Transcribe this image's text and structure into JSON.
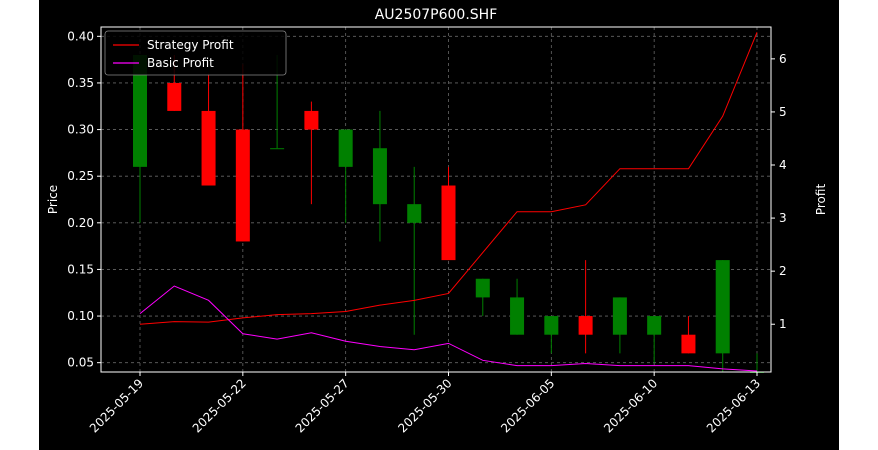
{
  "chart_data": {
    "type": "candlestick",
    "title": "AU2507P600.SHF",
    "ylabel": "Price",
    "ylabel_right": "Profit",
    "ylim": [
      0.04,
      0.41
    ],
    "ylim_right": [
      0.1,
      6.6
    ],
    "yticks": [
      "0.05",
      "0.10",
      "0.15",
      "0.20",
      "0.25",
      "0.30",
      "0.35",
      "0.40"
    ],
    "yticks_right": [
      "1",
      "2",
      "3",
      "4",
      "5",
      "6"
    ],
    "xticks": [
      {
        "label": "2025-05-19",
        "index": 0
      },
      {
        "label": "2025-05-22",
        "index": 3
      },
      {
        "label": "2025-05-27",
        "index": 6
      },
      {
        "label": "2025-05-30",
        "index": 9
      },
      {
        "label": "2025-06-05",
        "index": 12
      },
      {
        "label": "2025-06-10",
        "index": 15
      },
      {
        "label": "2025-06-13",
        "index": 18
      }
    ],
    "grid": true,
    "legend_position": "top-left",
    "background": "#000000",
    "up_color": "#008000",
    "down_color": "#ff0000",
    "candles": [
      {
        "i": 0,
        "open": 0.26,
        "close": 0.38,
        "high": 0.38,
        "low": 0.2
      },
      {
        "i": 1,
        "open": 0.35,
        "close": 0.32,
        "high": 0.38,
        "low": 0.32
      },
      {
        "i": 2,
        "open": 0.32,
        "close": 0.24,
        "high": 0.36,
        "low": 0.24
      },
      {
        "i": 3,
        "open": 0.3,
        "close": 0.18,
        "high": 0.37,
        "low": 0.18
      },
      {
        "i": 4,
        "open": 0.28,
        "close": 0.28,
        "high": 0.38,
        "low": 0.28
      },
      {
        "i": 5,
        "open": 0.32,
        "close": 0.3,
        "high": 0.33,
        "low": 0.22
      },
      {
        "i": 6,
        "open": 0.26,
        "close": 0.3,
        "high": 0.3,
        "low": 0.2
      },
      {
        "i": 7,
        "open": 0.22,
        "close": 0.28,
        "high": 0.32,
        "low": 0.18
      },
      {
        "i": 8,
        "open": 0.2,
        "close": 0.22,
        "high": 0.26,
        "low": 0.08
      },
      {
        "i": 9,
        "open": 0.24,
        "close": 0.16,
        "high": 0.26,
        "low": 0.16
      },
      {
        "i": 10,
        "open": 0.12,
        "close": 0.14,
        "high": 0.14,
        "low": 0.1
      },
      {
        "i": 11,
        "open": 0.08,
        "close": 0.12,
        "high": 0.14,
        "low": 0.08
      },
      {
        "i": 12,
        "open": 0.08,
        "close": 0.1,
        "high": 0.1,
        "low": 0.06
      },
      {
        "i": 13,
        "open": 0.1,
        "close": 0.08,
        "high": 0.16,
        "low": 0.06
      },
      {
        "i": 14,
        "open": 0.08,
        "close": 0.12,
        "high": 0.12,
        "low": 0.06
      },
      {
        "i": 15,
        "open": 0.08,
        "close": 0.1,
        "high": 0.1,
        "low": 0.05
      },
      {
        "i": 16,
        "open": 0.08,
        "close": 0.06,
        "high": 0.1,
        "low": 0.06
      },
      {
        "i": 17,
        "open": 0.06,
        "close": 0.16,
        "high": 0.16,
        "low": 0.04
      },
      {
        "i": 18,
        "open": 0.04,
        "close": 0.04,
        "high": 0.06,
        "low": 0.04
      }
    ],
    "series": [
      {
        "name": "Strategy Profit",
        "color": "#ff0000",
        "axis": "right",
        "values": [
          1.0,
          1.05,
          1.04,
          1.12,
          1.18,
          1.2,
          1.24,
          1.36,
          1.45,
          1.58,
          2.35,
          3.12,
          3.12,
          3.25,
          3.93,
          3.93,
          3.93,
          4.92,
          6.5
        ]
      },
      {
        "name": "Basic Profit",
        "color": "#ff00ff",
        "axis": "right",
        "values": [
          1.2,
          1.72,
          1.45,
          0.82,
          0.72,
          0.84,
          0.68,
          0.58,
          0.52,
          0.64,
          0.32,
          0.22,
          0.22,
          0.26,
          0.22,
          0.22,
          0.22,
          0.16,
          0.12
        ]
      }
    ]
  }
}
